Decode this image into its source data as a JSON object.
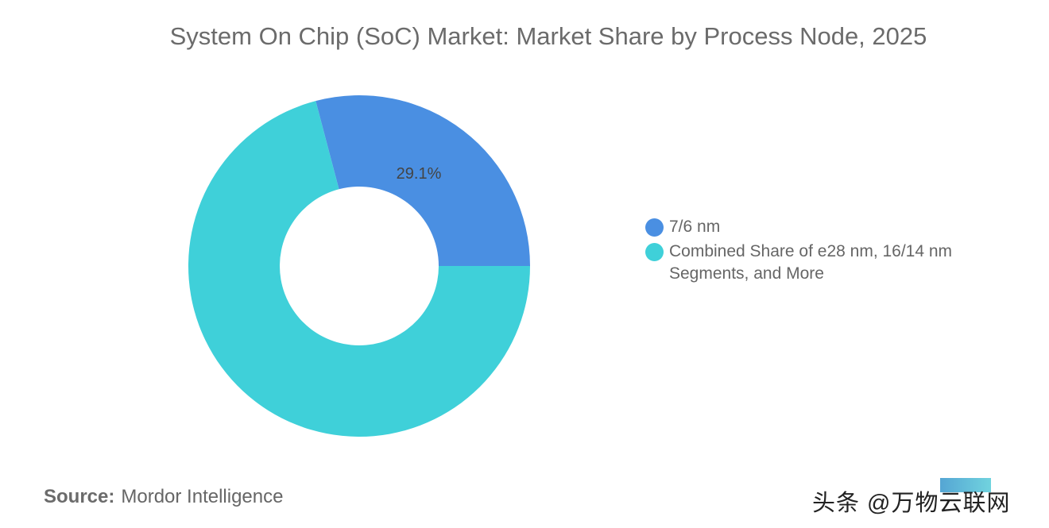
{
  "chart_data": {
    "type": "pie",
    "subtype": "donut",
    "title": "System On Chip (SoC) Market: Market Share by Process Node, 2025",
    "slices": [
      {
        "label": "7/6 nm",
        "value": 29.1,
        "data_label": "29.1%",
        "color": "#4A8FE2"
      },
      {
        "label": "Combined Share of e28 nm, 16/14 nm Segments, and More",
        "value": 70.9,
        "data_label": "",
        "color": "#3FD0D9"
      }
    ],
    "legend_position": "right"
  },
  "source": {
    "label": "Source:",
    "value": "Mordor Intelligence"
  },
  "watermark": "头条 @万物云联网"
}
